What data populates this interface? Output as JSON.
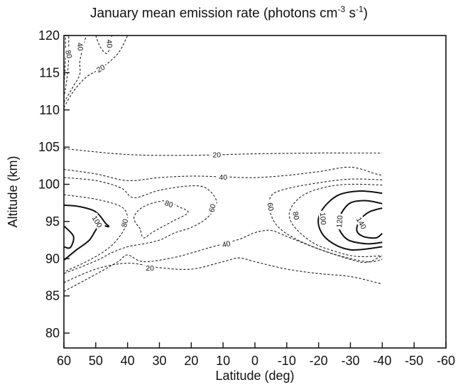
{
  "chart_data": {
    "type": "contour",
    "title_main": "January mean emission rate (photons cm",
    "title_exp1": "-3",
    "title_mid": " s",
    "title_exp2": "-1",
    "title_end": ")",
    "xlabel": "Latitude (deg)",
    "ylabel": "Altitude (km)",
    "xlim": [
      60,
      -60
    ],
    "ylim": [
      78,
      120
    ],
    "x_ticks": [
      60,
      50,
      40,
      30,
      20,
      10,
      0,
      -10,
      -20,
      -30,
      -40,
      -50,
      -60
    ],
    "y_ticks": [
      80,
      85,
      90,
      95,
      100,
      105,
      110,
      115,
      120
    ],
    "grid": false,
    "legend": "none",
    "contours": [
      {
        "level": 20,
        "style": "dashed",
        "points": [
          [
            60,
            104.8
          ],
          [
            40,
            104.0
          ],
          [
            20,
            103.9
          ],
          [
            0,
            104.1
          ],
          [
            -20,
            104.2
          ],
          [
            -30,
            104.2
          ],
          [
            -40,
            104.2
          ]
        ]
      },
      {
        "level": 20,
        "style": "dashed",
        "points": [
          [
            60,
            86.8
          ],
          [
            50,
            88.6
          ],
          [
            40,
            89.4
          ],
          [
            30,
            88.8
          ],
          [
            20,
            88.6
          ],
          [
            10,
            89.6
          ],
          [
            5,
            90.1
          ],
          [
            0,
            89.6
          ],
          [
            -10,
            88.6
          ],
          [
            -20,
            88.0
          ],
          [
            -30,
            87.6
          ],
          [
            -40,
            86.6
          ]
        ]
      },
      {
        "level": 40,
        "style": "dashed",
        "points": [
          [
            60,
            102.0
          ],
          [
            50,
            101.4
          ],
          [
            40,
            100.5
          ],
          [
            30,
            100.9
          ],
          [
            20,
            101.1
          ],
          [
            10,
            101.0
          ],
          [
            0,
            100.9
          ],
          [
            -10,
            101.2
          ],
          [
            -20,
            101.7
          ],
          [
            -30,
            102.3
          ],
          [
            -38,
            101.4
          ],
          [
            -40,
            101.2
          ]
        ]
      },
      {
        "level": 40,
        "style": "dashed",
        "points": [
          [
            60,
            85.6
          ],
          [
            50,
            87.9
          ],
          [
            43,
            89.6
          ],
          [
            40,
            90.5
          ],
          [
            35,
            89.6
          ],
          [
            25,
            90.2
          ],
          [
            15,
            91.4
          ],
          [
            5,
            92.6
          ],
          [
            0,
            93.5
          ],
          [
            -5,
            93.8
          ],
          [
            -10,
            93.0
          ],
          [
            -20,
            91.3
          ],
          [
            -30,
            89.9
          ],
          [
            -35,
            89.5
          ],
          [
            -40,
            90.4
          ]
        ]
      },
      {
        "level": 60,
        "style": "dashed",
        "points": [
          [
            60,
            100.9
          ],
          [
            50,
            100.5
          ],
          [
            42,
            99.5
          ],
          [
            38,
            98.2
          ],
          [
            30,
            99.2
          ],
          [
            20,
            99.8
          ],
          [
            15,
            99.4
          ],
          [
            12,
            97.5
          ],
          [
            15,
            95.5
          ],
          [
            20,
            94.2
          ],
          [
            25,
            93.5
          ],
          [
            30,
            92.5
          ],
          [
            35,
            92.0
          ],
          [
            40,
            91.6
          ],
          [
            45,
            90.8
          ],
          [
            50,
            89.7
          ],
          [
            60,
            88.0
          ]
        ]
      },
      {
        "level": 60,
        "style": "dashed",
        "points": [
          [
            -40,
            100.6
          ],
          [
            -30,
            100.7
          ],
          [
            -20,
            100.2
          ],
          [
            -10,
            99.4
          ],
          [
            -5,
            98.4
          ],
          [
            -5,
            96.0
          ],
          [
            -8,
            94.0
          ],
          [
            -15,
            92.2
          ],
          [
            -25,
            90.6
          ],
          [
            -35,
            89.6
          ],
          [
            -40,
            89.9
          ]
        ]
      },
      {
        "level": 80,
        "style": "dashed",
        "points": [
          [
            60,
            98.6
          ],
          [
            50,
            98.0
          ],
          [
            42,
            97.0
          ],
          [
            40,
            95.5
          ],
          [
            41,
            94.0
          ],
          [
            44,
            92.2
          ],
          [
            48,
            90.8
          ],
          [
            53,
            89.6
          ],
          [
            60,
            88.2
          ]
        ]
      },
      {
        "level": 80,
        "style": "dashed",
        "points": [
          [
            36,
            94.0
          ],
          [
            38,
            95.5
          ],
          [
            35,
            97.0
          ],
          [
            28,
            97.8
          ],
          [
            24,
            97.0
          ],
          [
            21,
            96.2
          ],
          [
            26,
            95.0
          ],
          [
            32,
            93.6
          ],
          [
            35,
            92.8
          ],
          [
            36,
            94.0
          ]
        ]
      },
      {
        "level": 80,
        "style": "dashed",
        "points": [
          [
            -40,
            99.9
          ],
          [
            -30,
            100.0
          ],
          [
            -22,
            99.6
          ],
          [
            -15,
            98.5
          ],
          [
            -11,
            96.5
          ],
          [
            -12,
            94.5
          ],
          [
            -18,
            92.2
          ],
          [
            -25,
            91.0
          ],
          [
            -32,
            90.3
          ],
          [
            -40,
            90.4
          ]
        ]
      },
      {
        "level": 100,
        "style": "solid",
        "points": [
          [
            60,
            97.2
          ],
          [
            55,
            97.0
          ],
          [
            50,
            96.3
          ],
          [
            47,
            94.8
          ],
          [
            46,
            94.3
          ],
          [
            49,
            94.4
          ],
          [
            52,
            92.5
          ],
          [
            56,
            91.2
          ],
          [
            60,
            89.8
          ]
        ]
      },
      {
        "level": 100,
        "style": "solid",
        "points": [
          [
            -40,
            98.8
          ],
          [
            -33,
            99.1
          ],
          [
            -26,
            98.5
          ],
          [
            -21,
            96.5
          ],
          [
            -20,
            94.5
          ],
          [
            -23,
            92.5
          ],
          [
            -30,
            91.2
          ],
          [
            -40,
            91.6
          ]
        ]
      },
      {
        "level": 120,
        "style": "solid",
        "points": [
          [
            60,
            94.4
          ],
          [
            57,
            93.0
          ],
          [
            58,
            91.5
          ],
          [
            60,
            91.6
          ]
        ]
      },
      {
        "level": 120,
        "style": "solid",
        "points": [
          [
            -40,
            97.4
          ],
          [
            -35,
            97.8
          ],
          [
            -30,
            97.5
          ],
          [
            -27,
            96.0
          ],
          [
            -26,
            94.5
          ],
          [
            -29,
            92.6
          ],
          [
            -35,
            92.0
          ],
          [
            -40,
            92.2
          ]
        ]
      },
      {
        "level": 140,
        "style": "solid",
        "points": [
          [
            -40,
            96.8
          ],
          [
            -36,
            96.3
          ],
          [
            -33,
            95.2
          ],
          [
            -32,
            93.8
          ],
          [
            -34,
            93.0
          ],
          [
            -38,
            92.8
          ],
          [
            -40,
            93.4
          ]
        ]
      },
      {
        "level": 20,
        "style": "dashed",
        "points": [
          [
            60,
            110.3
          ],
          [
            57,
            112.5
          ],
          [
            53,
            114.4
          ],
          [
            48,
            115.7
          ],
          [
            43,
            117.6
          ],
          [
            40,
            120.0
          ]
        ]
      },
      {
        "level": 40,
        "style": "dashed",
        "points": [
          [
            60,
            111.0
          ],
          [
            57,
            113.2
          ],
          [
            55,
            114.8
          ],
          [
            55,
            116.5
          ],
          [
            54,
            118.4
          ],
          [
            53,
            120.0
          ]
        ]
      },
      {
        "level": 60,
        "style": "dashed",
        "points": [
          [
            60,
            111.6
          ],
          [
            59,
            114.4
          ],
          [
            58.5,
            117.0
          ],
          [
            58.5,
            120.0
          ]
        ]
      },
      {
        "level": 80,
        "style": "dashed",
        "points": [
          [
            60,
            113.0
          ],
          [
            59.5,
            116.8
          ],
          [
            59.5,
            120.0
          ]
        ]
      },
      {
        "level": 40,
        "style": "dashed",
        "points": [
          [
            50,
            120.0
          ],
          [
            48.5,
            118.4
          ],
          [
            46.5,
            117.6
          ],
          [
            45,
            119.0
          ],
          [
            45,
            120.0
          ]
        ]
      }
    ],
    "contour_labels": [
      {
        "text": "20",
        "x": 12,
        "y": 104.0,
        "rot": 0
      },
      {
        "text": "40",
        "x": 10,
        "y": 101.0,
        "rot": 0
      },
      {
        "text": "40",
        "x": 9,
        "y": 92.0,
        "rot": -12
      },
      {
        "text": "20",
        "x": 33,
        "y": 88.8,
        "rot": 0
      },
      {
        "text": "100",
        "x": 49.5,
        "y": 95.0,
        "rot": 58
      },
      {
        "text": "80",
        "x": 41,
        "y": 94.8,
        "rot": -78
      },
      {
        "text": "80",
        "x": 27,
        "y": 97.4,
        "rot": 20
      },
      {
        "text": "60",
        "x": 13.5,
        "y": 96.8,
        "rot": -78
      },
      {
        "text": "60",
        "x": -5,
        "y": 97.0,
        "rot": 80
      },
      {
        "text": "80",
        "x": -13,
        "y": 95.8,
        "rot": 80
      },
      {
        "text": "100",
        "x": -21.5,
        "y": 95.4,
        "rot": 85
      },
      {
        "text": "120",
        "x": -26.5,
        "y": 95.0,
        "rot": -85
      },
      {
        "text": "140",
        "x": -33.5,
        "y": 94.8,
        "rot": 60
      },
      {
        "text": "80",
        "x": 58.4,
        "y": 117.5,
        "rot": 75
      },
      {
        "text": "40",
        "x": 54.8,
        "y": 118.5,
        "rot": 85
      },
      {
        "text": "40",
        "x": 45.6,
        "y": 118.9,
        "rot": 85
      },
      {
        "text": "20",
        "x": 48.5,
        "y": 115.6,
        "rot": -30
      }
    ]
  }
}
